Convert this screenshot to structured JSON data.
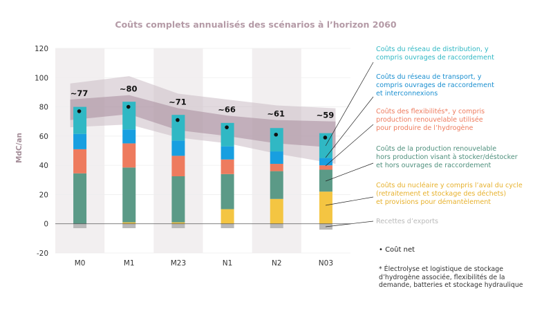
{
  "chart_data": {
    "type": "bar",
    "title": "Coûts complets annualisés des scénarios à l’horizon 2060",
    "ylabel": "MdC/an",
    "xlabel": "",
    "ylim": [
      -20,
      120
    ],
    "yticks": [
      "-20",
      "0",
      "20",
      "40",
      "60",
      "80",
      "100",
      "120"
    ],
    "categories": [
      "M0",
      "M1",
      "M23",
      "N1",
      "N2",
      "N03"
    ],
    "series": [
      {
        "name": "Recettes d’exports",
        "color": "#b9b9b9",
        "values": [
          -3,
          -3,
          -3,
          -3,
          -3,
          -4
        ]
      },
      {
        "name": "Coûts du nucléaire y compris l’aval du cycle (retraitement et stockage des déchets) et provisions pour démantèlement",
        "color": "#f4c542",
        "values": [
          0,
          1,
          1,
          10,
          17,
          22
        ]
      },
      {
        "name": "Coûts de la production renouvelable hors production visant à stocker/déstocker et hors ouvrages de raccordement",
        "color": "#5b9a87",
        "values": [
          34.5,
          37.5,
          31.5,
          24,
          19,
          15
        ]
      },
      {
        "name": "Coûts des flexibilités*, y compris production renouvelable utilisée pour produire de l’hydrogène",
        "color": "#ee7b5e",
        "values": [
          16.5,
          16.5,
          14,
          10,
          5,
          3
        ]
      },
      {
        "name": "Coûts du réseau de transport, y compris ouvrages de raccordement et interconnexions",
        "color": "#189fe0",
        "values": [
          10.5,
          9.5,
          10.5,
          9,
          8.5,
          5
        ]
      },
      {
        "name": "Coûts du réseau de distribution, y compris ouvrages de raccordement",
        "color": "#30b8c4",
        "values": [
          18.5,
          19,
          17.5,
          16,
          16,
          17
        ]
      }
    ],
    "cout_net": [
      77,
      80,
      71,
      66,
      61,
      59
    ],
    "cout_net_labels": [
      "~77",
      "~80",
      "~71",
      "~66",
      "~61",
      "~59"
    ],
    "range_outer": {
      "low": [
        66,
        68,
        59,
        55,
        48,
        41
      ],
      "high": [
        96,
        101,
        89,
        85,
        81,
        79
      ]
    },
    "range_inner": {
      "low": [
        71,
        75,
        64,
        60,
        55,
        52
      ],
      "high": [
        85,
        88,
        79,
        74,
        71,
        70
      ]
    }
  },
  "legend": [
    {
      "lines": [
        "Coûts du réseau de distribution, y",
        "compris ouvrages de raccordement"
      ],
      "color": "#30b8c4"
    },
    {
      "lines": [
        "Coûts du réseau de transport, y",
        "compris ouvrages de raccordement",
        "et interconnexions"
      ],
      "color": "#1a8fd0"
    },
    {
      "lines": [
        "Coûts des flexibilités*, y compris",
        "production renouvelable utilisée",
        "pour produire de l’hydrogène"
      ],
      "color": "#ee7b5e"
    },
    {
      "lines": [
        "Coûts de la production renouvelable",
        "hors production visant à stocker/déstocker",
        "et hors ouvrages de raccordement"
      ],
      "color": "#4e8f7c"
    },
    {
      "lines": [
        "Coûts du nucléaire y compris l’aval du cycle",
        "(retraitement et stockage des déchets)",
        "et provisions pour démantèlement"
      ],
      "color": "#e7b12c"
    },
    {
      "lines": [
        "Recettes d’exports"
      ],
      "color": "#b9b9b9"
    }
  ],
  "cout_net_legend": "• Coût net",
  "footnote": [
    "* Électrolyse et logistique de stockage",
    "  d’hydrogène associée, flexibilités de la",
    "  demande, batteries et stockage hydraulique"
  ]
}
